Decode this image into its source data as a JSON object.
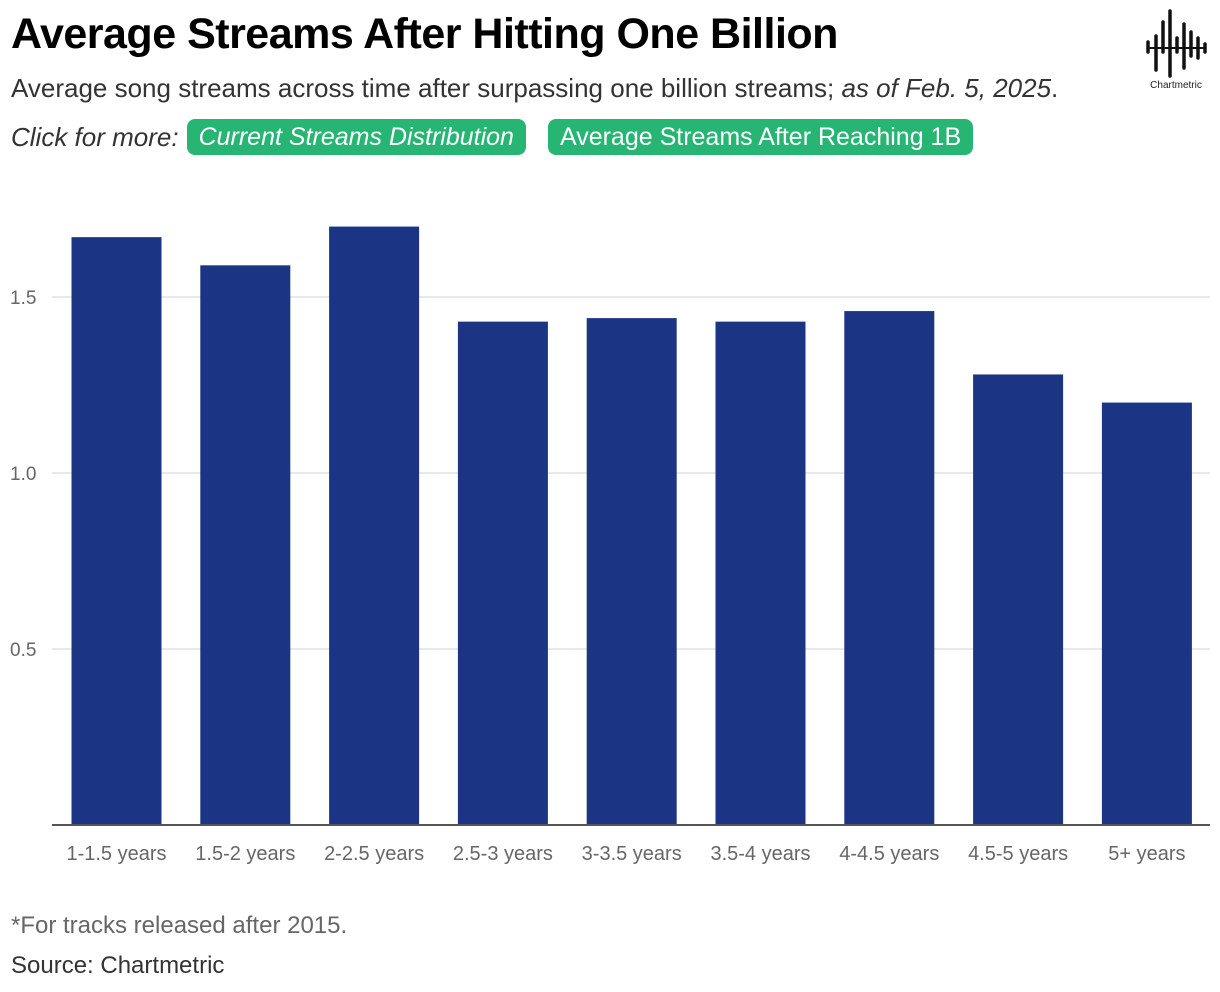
{
  "header": {
    "title": "Average Streams After Hitting One Billion",
    "subtitle_main": "Average song streams across time after surpassing one billion streams; ",
    "subtitle_date": "as of Feb. 5, 2025",
    "subtitle_end": ".",
    "more_label": "Click for more:",
    "links": [
      "Current Streams Distribution",
      "Average Streams After Reaching 1B"
    ],
    "logo_text": "Chartmetric"
  },
  "footer": {
    "footnote": "*For tracks released after 2015.",
    "source": "Source: Chartmetric"
  },
  "colors": {
    "bar": "#1b3483",
    "link_bg": "#27b573",
    "grid": "#e2e2e2",
    "axis": "#555555"
  },
  "chart_data": {
    "type": "bar",
    "categories": [
      "1-1.5 years",
      "1.5-2 years",
      "2-2.5 years",
      "2.5-3 years",
      "3-3.5 years",
      "3.5-4 years",
      "4-4.5 years",
      "4.5-5 years",
      "5+ years"
    ],
    "values": [
      1.67,
      1.59,
      1.7,
      1.43,
      1.44,
      1.43,
      1.46,
      1.28,
      1.2
    ],
    "yticks": [
      0.5,
      1.0,
      1.5
    ],
    "ytick_labels": [
      "0.5",
      "1.0",
      "1.5"
    ],
    "ylim": [
      0,
      1.75
    ],
    "grid": true,
    "legend": "none"
  }
}
